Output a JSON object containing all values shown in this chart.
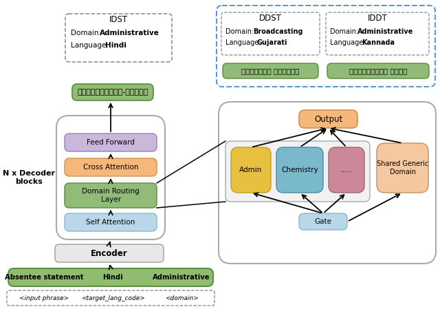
{
  "bg_color": "#ffffff",
  "idst_label": "IDST",
  "ddst_label": "DDST",
  "iddt_label": "IDDT",
  "idst_domain_bold": "Administrative",
  "idst_lang_bold": "Hindi",
  "ddst_domain_bold": "Broadcasting",
  "ddst_lang_bold": "Gujarati",
  "iddt_domain_bold": "Administrative",
  "iddt_lang_bold": "Kannada",
  "output_text": "अनुपस्थिति-विवरण",
  "ddst_output": "ગેરહાજર નિવેદન",
  "iddt_output": "ಗೈರುಹಾಜರಿ ವರದಿ",
  "feed_forward": "Feed Forward",
  "cross_attention": "Cross Attention",
  "domain_routing": "Domain Routing\nLayer",
  "self_attention": "Self Attention",
  "encoder_text": "Encoder",
  "input_bar_text1": "Absentee statement",
  "input_bar_text2": "Hindi",
  "input_bar_text3": "Administrative",
  "placeholder1": "<input phrase>",
  "placeholder2": "<target_lang_code>",
  "placeholder3": "<domain>",
  "admin_text": "Admin",
  "chemistry_text": "Chemistry",
  "dots_text": ".....",
  "shared_text": "Shared Generic\nDomain",
  "gate_text": "Gate",
  "output_box_text": "Output",
  "nx_decoder": "N x Decoder\nblocks",
  "color_purple_ff": "#c9b8dc",
  "color_orange_ca": "#f5b87a",
  "color_green_drl": "#90bc78",
  "color_blue_sa": "#b8d8ea",
  "color_encoder": "#e8e8e8",
  "color_input_bar": "#8fbc6e",
  "color_admin": "#e8c040",
  "color_chemistry": "#7ab8cc",
  "color_dots": "#cc8898",
  "color_shared": "#f5c8a0",
  "color_gate": "#b8d8ea",
  "color_output_box": "#f5b87a",
  "color_green_output": "#90bc78",
  "color_blue_dashed": "#5599dd"
}
